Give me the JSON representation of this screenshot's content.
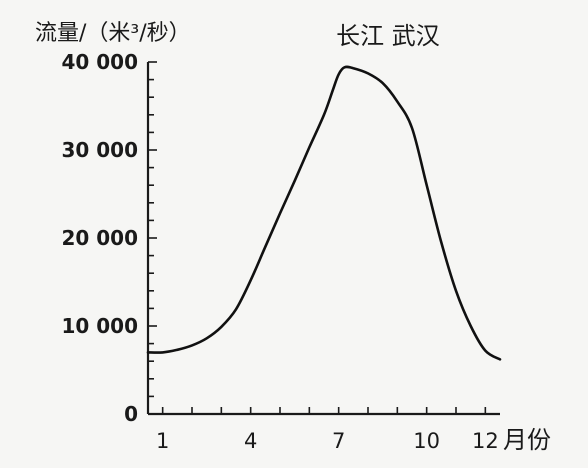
{
  "chart_data": {
    "type": "line",
    "title": "长江  武汉",
    "ylabel": "流量/（米³/秒）",
    "xlabel": "月份",
    "ylim": [
      0,
      40000
    ],
    "xlim": [
      0.5,
      12.5
    ],
    "x_ticks": [
      1,
      4,
      7,
      10,
      12
    ],
    "x_tick_labels": [
      "1",
      "4",
      "7",
      "10",
      "12"
    ],
    "y_ticks": [
      0,
      10000,
      20000,
      30000,
      40000
    ],
    "y_tick_labels": [
      "0",
      "10 000",
      "20 000",
      "30 000",
      "40 000"
    ],
    "grid": false,
    "series": [
      {
        "x": [
          0.5,
          1,
          1.5,
          2,
          2.5,
          3,
          3.5,
          4,
          4.5,
          5,
          5.5,
          6,
          6.5,
          6.8,
          7,
          7.2,
          7.5,
          8,
          8.5,
          9,
          9.5,
          10,
          10.5,
          11,
          11.5,
          12,
          12.5
        ],
        "values": [
          7000,
          7000,
          7300,
          7800,
          8600,
          9900,
          11900,
          15200,
          19000,
          22800,
          26500,
          30300,
          34000,
          36800,
          38600,
          39400,
          39300,
          38700,
          37600,
          35500,
          32500,
          26000,
          19500,
          14000,
          10000,
          7200,
          6200
        ]
      }
    ]
  }
}
